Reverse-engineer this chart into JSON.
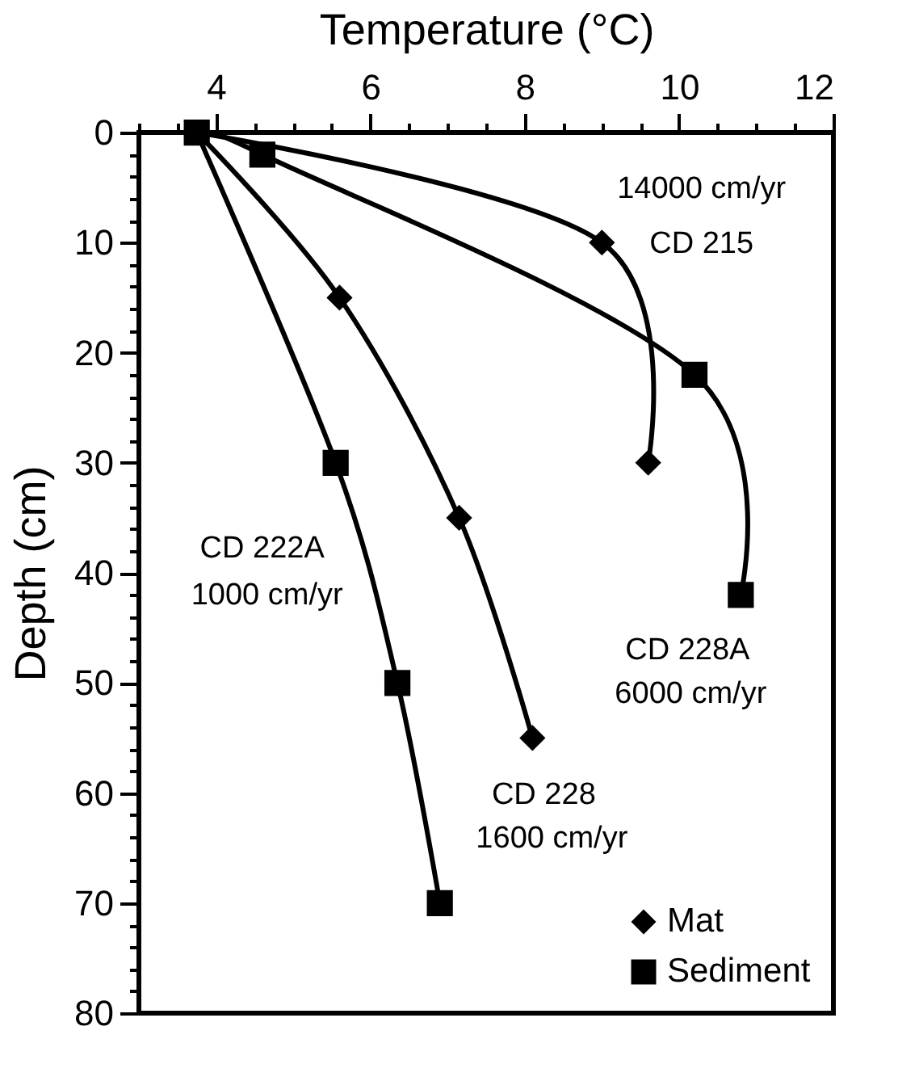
{
  "chart_data": {
    "type": "line",
    "xlabel": "Temperature (°C)",
    "ylabel": "Depth (cm)",
    "xlim": [
      3,
      12
    ],
    "ylim": [
      80,
      0
    ],
    "xticks": [
      {
        "value": 3,
        "label": null
      },
      {
        "value": 3.5,
        "label": null
      },
      4,
      {
        "value": 4.5,
        "label": null
      },
      {
        "value": 5,
        "label": null
      },
      {
        "value": 5.5,
        "label": null
      },
      6,
      {
        "value": 6.5,
        "label": null
      },
      {
        "value": 7,
        "label": null
      },
      {
        "value": 7.5,
        "label": null
      },
      8,
      {
        "value": 8.5,
        "label": null
      },
      {
        "value": 9,
        "label": null
      },
      {
        "value": 9.5,
        "label": null
      },
      10,
      {
        "value": 10.5,
        "label": null
      },
      {
        "value": 11,
        "label": null
      },
      {
        "value": 11.5,
        "label": null
      },
      12
    ],
    "yticks": [
      0,
      {
        "value": 2,
        "label": null
      },
      {
        "value": 4,
        "label": null
      },
      {
        "value": 6,
        "label": null
      },
      {
        "value": 8,
        "label": null
      },
      10,
      {
        "value": 12,
        "label": null
      },
      {
        "value": 14,
        "label": null
      },
      {
        "value": 16,
        "label": null
      },
      {
        "value": 18,
        "label": null
      },
      20,
      {
        "value": 22,
        "label": null
      },
      {
        "value": 24,
        "label": null
      },
      {
        "value": 26,
        "label": null
      },
      {
        "value": 28,
        "label": null
      },
      30,
      {
        "value": 32,
        "label": null
      },
      {
        "value": 34,
        "label": null
      },
      {
        "value": 36,
        "label": null
      },
      {
        "value": 38,
        "label": null
      },
      40,
      {
        "value": 42,
        "label": null
      },
      {
        "value": 44,
        "label": null
      },
      {
        "value": 46,
        "label": null
      },
      {
        "value": 48,
        "label": null
      },
      50,
      {
        "value": 52,
        "label": null
      },
      {
        "value": 54,
        "label": null
      },
      {
        "value": 56,
        "label": null
      },
      {
        "value": 58,
        "label": null
      },
      60,
      {
        "value": 62,
        "label": null
      },
      {
        "value": 64,
        "label": null
      },
      {
        "value": 66,
        "label": null
      },
      {
        "value": 68,
        "label": null
      },
      70,
      {
        "value": 72,
        "label": null
      },
      {
        "value": 74,
        "label": null
      },
      {
        "value": 76,
        "label": null
      },
      {
        "value": 78,
        "label": null
      },
      80
    ],
    "grid": false,
    "legend": "bottom right",
    "line_style": "solid",
    "series": [
      {
        "color": "#000000",
        "marker": "none",
        "x": [
          3.75,
          9.0,
          9.6
        ],
        "values": [
          0,
          10,
          30
        ]
      },
      {
        "color": "#000000",
        "marker": "none",
        "x": [
          3.75,
          4.6,
          10.2,
          10.8
        ],
        "values": [
          0,
          2,
          22,
          42
        ]
      },
      {
        "color": "#000000",
        "marker": "none",
        "x": [
          3.75,
          5.6,
          7.15,
          8.1
        ],
        "values": [
          0,
          15,
          35,
          55
        ]
      },
      {
        "color": "#000000",
        "marker": "none",
        "x": [
          3.75,
          5.55,
          6.35,
          6.9
        ],
        "values": [
          0,
          30,
          50,
          70
        ]
      },
      {
        "type": "scatter",
        "name": "Mat",
        "color": "#000000",
        "marker": "diamond",
        "x": [
          9.0,
          9.6,
          5.6,
          7.15,
          8.1
        ],
        "values": [
          10,
          30,
          15,
          35,
          55
        ]
      },
      {
        "type": "scatter",
        "name": "Sediment",
        "color": "#000000",
        "marker": "square",
        "x": [
          3.75,
          4.6,
          10.2,
          10.8,
          5.55,
          6.35,
          6.9
        ],
        "values": [
          0,
          2,
          22,
          42,
          30,
          50,
          70
        ]
      }
    ],
    "annotations": [
      "14000 cm/yr",
      "CD 215",
      "CD 222A",
      "1000 cm/yr",
      "CD 228A",
      "6000 cm/yr",
      "CD 228",
      "1600 cm/yr"
    ]
  }
}
